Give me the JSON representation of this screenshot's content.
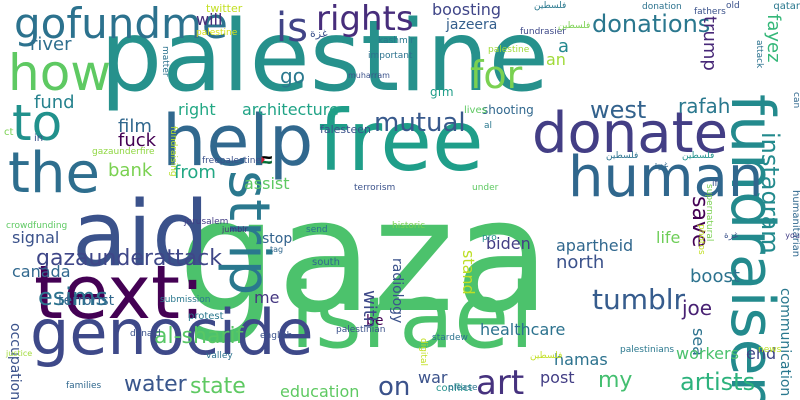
{
  "words": [
    {
      "text": "gaza",
      "color": "#4cc26c"
    },
    {
      "text": "palestine",
      "color": "#26918c"
    },
    {
      "text": "israel",
      "color": "#4cc26c"
    },
    {
      "text": "free",
      "color": "#1f9e89"
    },
    {
      "text": "aid",
      "color": "#3b528b"
    },
    {
      "text": "text:",
      "color": "#440154"
    },
    {
      "text": "genocide",
      "color": "#3e4989"
    },
    {
      "text": "help",
      "color": "#31688e"
    },
    {
      "text": "donate",
      "color": "#433e85"
    },
    {
      "text": "fundraiser",
      "color": "#238a8d"
    },
    {
      "text": "human",
      "color": "#30678d"
    },
    {
      "text": "the",
      "color": "#2e6e8e"
    },
    {
      "text": "how",
      "color": "#5ec962"
    },
    {
      "text": "to",
      "color": "#21918c"
    },
    {
      "text": "strip",
      "color": "#2a788e"
    },
    {
      "text": "gofundme",
      "color": "#2c728e"
    },
    {
      "text": "rights",
      "color": "#472d7b"
    },
    {
      "text": "is",
      "color": "#414487"
    },
    {
      "text": "for",
      "color": "#7ad151"
    },
    {
      "text": "donations",
      "color": "#2a778e"
    },
    {
      "text": "instagram",
      "color": "#238a8d"
    },
    {
      "text": "art",
      "color": "#46327e"
    },
    {
      "text": "artists",
      "color": "#2db27d"
    },
    {
      "text": "mutual",
      "color": "#38598c"
    },
    {
      "text": "tumblr",
      "color": "#365c8d"
    },
    {
      "text": "esims",
      "color": "#2c728e"
    },
    {
      "text": "gazaunderattack",
      "color": "#3f4788"
    },
    {
      "text": "al-sharif",
      "color": "#58c765"
    },
    {
      "text": "water",
      "color": "#39568c"
    },
    {
      "text": "state",
      "color": "#5ec962"
    },
    {
      "text": "on",
      "color": "#3b528b"
    },
    {
      "text": "my",
      "color": "#44bf70"
    },
    {
      "text": "west",
      "color": "#33628d"
    },
    {
      "text": "rafah",
      "color": "#2a788e"
    },
    {
      "text": "fayez",
      "color": "#35b779"
    },
    {
      "text": "a",
      "color": "#23888e"
    },
    {
      "text": "trump",
      "color": "#482878"
    },
    {
      "text": "film",
      "color": "#31688e"
    },
    {
      "text": "fuck",
      "color": "#440154"
    },
    {
      "text": "bank",
      "color": "#7ad151"
    },
    {
      "text": "from",
      "color": "#22a884"
    },
    {
      "text": "fund",
      "color": "#26828e"
    },
    {
      "text": "river",
      "color": "#2e6e8e"
    },
    {
      "text": "will",
      "color": "#472d7b"
    },
    {
      "text": "go",
      "color": "#2a788e"
    },
    {
      "text": "right",
      "color": "#22a884"
    },
    {
      "text": "architecture",
      "color": "#20a386"
    },
    {
      "text": "boosting",
      "color": "#404688"
    },
    {
      "text": "jazeera",
      "color": "#355f8d"
    },
    {
      "text": "an",
      "color": "#a0da39"
    },
    {
      "text": "save",
      "color": "#440154"
    },
    {
      "text": "life",
      "color": "#6ece58"
    },
    {
      "text": "boost",
      "color": "#2c728e"
    },
    {
      "text": "biden",
      "color": "#433e85"
    },
    {
      "text": "apartheid",
      "color": "#31688e"
    },
    {
      "text": "north",
      "color": "#3b528b"
    },
    {
      "text": "joe",
      "color": "#482173"
    },
    {
      "text": "assist",
      "color": "#5ec962"
    },
    {
      "text": "signal",
      "color": "#3b528b"
    },
    {
      "text": "canada",
      "color": "#31688e"
    },
    {
      "text": "stop",
      "color": "#33638d"
    },
    {
      "text": "me",
      "color": "#453781"
    },
    {
      "text": "be",
      "color": "#440154"
    },
    {
      "text": "with",
      "color": "#3e4989"
    },
    {
      "text": "stand",
      "color": "#bddf26"
    },
    {
      "text": "radiology",
      "color": "#3b528b"
    },
    {
      "text": "healthcare",
      "color": "#2c728e"
    },
    {
      "text": "hamas",
      "color": "#2c728e"
    },
    {
      "text": "sea",
      "color": "#2c728e"
    },
    {
      "text": "education",
      "color": "#5ec962"
    },
    {
      "text": "war",
      "color": "#3b528b"
    },
    {
      "text": "post",
      "color": "#433e85"
    },
    {
      "text": "workers",
      "color": "#4ac16d"
    },
    {
      "text": "end",
      "color": "#404688"
    },
    {
      "text": "communication",
      "color": "#2a788e"
    },
    {
      "text": "occupation",
      "color": "#3b528b"
    },
    {
      "text": "terrorist",
      "color": "#31688e"
    },
    {
      "text": "twitter",
      "color": "#c2df23"
    },
    {
      "text": "palestine",
      "color": "#d8e219"
    },
    {
      "text": "muharram",
      "color": "#3b528b"
    },
    {
      "text": "gfm",
      "color": "#1f9e89"
    },
    {
      "text": "kashmir",
      "color": "#2a788e"
    },
    {
      "text": "important",
      "color": "#2c728e"
    },
    {
      "text": "fundrasier",
      "color": "#3e4989"
    },
    {
      "text": "palestine",
      "color": "#a0da39"
    },
    {
      "text": "matter",
      "color": "#2c728e"
    },
    {
      "text": "fundraising",
      "color": "#b5de2b"
    },
    {
      "text": "shooting",
      "color": "#31688e"
    },
    {
      "text": "lives",
      "color": "#5ec962"
    },
    {
      "text": "falesteen",
      "color": "#3b528b"
    },
    {
      "text": "al",
      "color": "#2a788e"
    },
    {
      "text": "ct",
      "color": "#7ad151"
    },
    {
      "text": "in",
      "color": "#3b528b"
    },
    {
      "text": "gazaunderfire",
      "color": "#90d743"
    },
    {
      "text": "freepalestine🇵🇸",
      "color": "#3b528b"
    },
    {
      "text": "jerusalem",
      "color": "#433e85"
    },
    {
      "text": "crowdfunding",
      "color": "#5ec962"
    },
    {
      "text": "jumblr",
      "color": "#482878"
    },
    {
      "text": "terrorism",
      "color": "#3b528b"
    },
    {
      "text": "under",
      "color": "#5ec962"
    },
    {
      "text": "supernatural",
      "color": "#7ad151"
    },
    {
      "text": "send",
      "color": "#2c728e"
    },
    {
      "text": "historic",
      "color": "#7ad151"
    },
    {
      "text": "tag",
      "color": "#31688e"
    },
    {
      "text": "pro",
      "color": "#21918c"
    },
    {
      "text": "south",
      "color": "#31688e"
    },
    {
      "text": "protest",
      "color": "#2a788e"
    },
    {
      "text": "donald",
      "color": "#3b528b"
    },
    {
      "text": "submission",
      "color": "#2a788e"
    },
    {
      "text": "justice",
      "color": "#a0da39"
    },
    {
      "text": "english",
      "color": "#3b528b"
    },
    {
      "text": "palestinian",
      "color": "#3b528b"
    },
    {
      "text": "valley",
      "color": "#2c728e"
    },
    {
      "text": "digital",
      "color": "#c2df23"
    },
    {
      "text": "families",
      "color": "#31688e"
    },
    {
      "text": "conflict",
      "color": "#21918c"
    },
    {
      "text": "stardew",
      "color": "#2c728e"
    },
    {
      "text": "please",
      "color": "#2c728e"
    },
    {
      "text": "palestinians",
      "color": "#2a788e"
    },
    {
      "text": "news",
      "color": "#bddf26"
    },
    {
      "text": "humanitarian",
      "color": "#31688e"
    },
    {
      "text": "photos",
      "color": "#c2df23"
    },
    {
      "text": "you",
      "color": "#433e85"
    },
    {
      "text": "if",
      "color": "#3b528b"
    },
    {
      "text": "can",
      "color": "#31688e"
    },
    {
      "text": "attack",
      "color": "#2c728e"
    },
    {
      "text": "old",
      "color": "#3b528b"
    },
    {
      "text": "donation",
      "color": "#2c728e"
    },
    {
      "text": "fathers",
      "color": "#3b528b"
    },
    {
      "text": "qatar",
      "color": "#2a788e"
    },
    {
      "text": "فلسطين",
      "color": "#2a788e"
    },
    {
      "text": "فلسطين",
      "color": "#7ad151"
    },
    {
      "text": "غزة",
      "color": "#3b528b"
    },
    {
      "text": "فلسطين",
      "color": "#2c728e"
    },
    {
      "text": "فلسطين",
      "color": "#21918c"
    },
    {
      "text": "غزة",
      "color": "#31688e"
    },
    {
      "text": "فلسطين",
      "color": "#c2df23"
    },
    {
      "text": "غزة",
      "color": "#3b528b"
    }
  ]
}
